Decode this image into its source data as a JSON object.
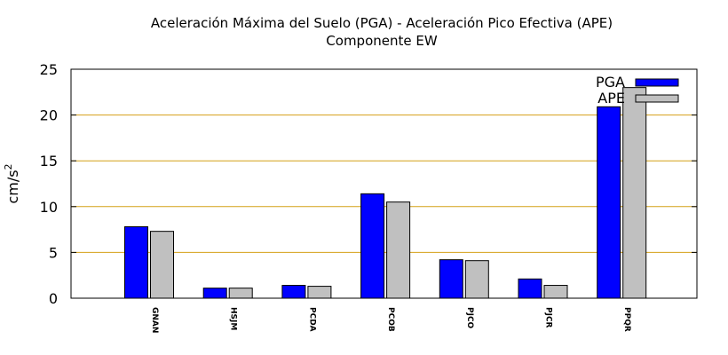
{
  "chart_data": {
    "type": "bar",
    "title_line1": "Aceleración Máxima del Suelo (PGA) -  Aceleración Pico Efectiva (APE)",
    "title_line2": "Componente EW",
    "ylabel": "cm/s",
    "ylabel_sup": "2",
    "categories": [
      "GNAN",
      "HSJM",
      "PCDA",
      "PCOB",
      "PJCO",
      "PJCR",
      "PPQR"
    ],
    "yticks": [
      "0",
      "5",
      "10",
      "15",
      "20",
      "25"
    ],
    "ylim": [
      0,
      25
    ],
    "grid": true,
    "legend_position": "top-right",
    "series": [
      {
        "name": "PGA",
        "color": "#0000ff",
        "values": [
          7.8,
          1.1,
          1.4,
          11.4,
          4.2,
          2.1,
          20.9
        ]
      },
      {
        "name": "APE",
        "color": "#c0c0c0",
        "values": [
          7.3,
          1.1,
          1.3,
          10.5,
          4.1,
          1.4,
          23.0
        ]
      }
    ],
    "grid_color": "#d4a017"
  }
}
